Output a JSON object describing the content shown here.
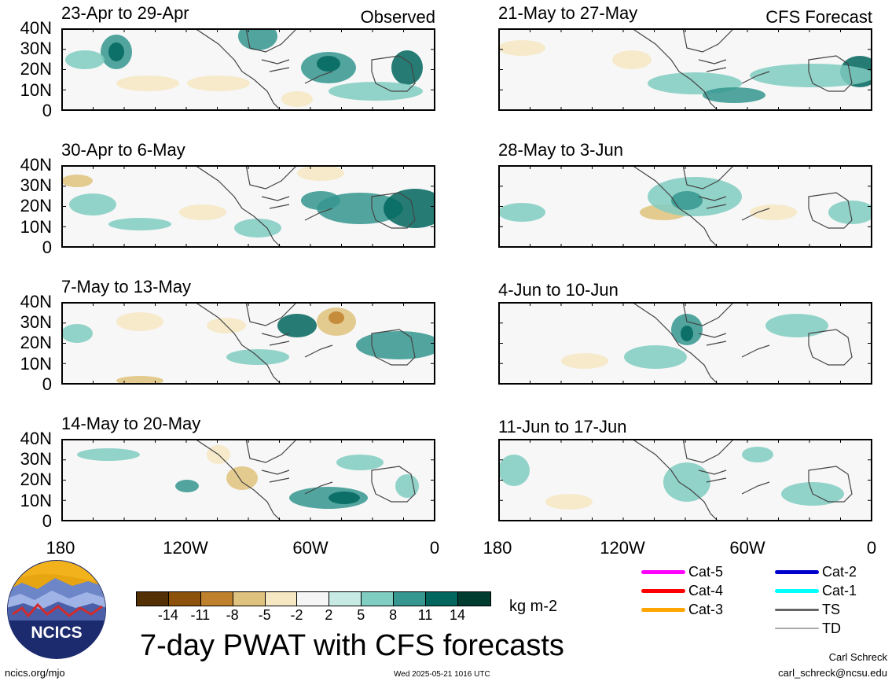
{
  "left_column_label": "Observed",
  "right_column_label": "CFS Forecast",
  "panels_left": [
    {
      "title": "23-Apr to 29-Apr"
    },
    {
      "title": "30-Apr to 6-May"
    },
    {
      "title": "7-May to 13-May"
    },
    {
      "title": "14-May to 20-May"
    }
  ],
  "panels_right": [
    {
      "title": "21-May to 27-May"
    },
    {
      "title": "28-May to 3-Jun"
    },
    {
      "title": "4-Jun to 10-Jun"
    },
    {
      "title": "11-Jun to 17-Jun"
    }
  ],
  "lat_ticks": [
    "40N",
    "30N",
    "20N",
    "10N",
    "0"
  ],
  "lon_ticks": [
    "180",
    "120W",
    "60W",
    "0"
  ],
  "colorbar": {
    "unit": "kg m-2",
    "labels": [
      "-14",
      "-11",
      "-8",
      "-5",
      "-2",
      "2",
      "5",
      "8",
      "11",
      "14"
    ],
    "colors": [
      "#543005",
      "#8c510a",
      "#bf812d",
      "#dfc27d",
      "#f6e8c3",
      "#f5f5f5",
      "#c7eae5",
      "#80cdc1",
      "#35978f",
      "#01665e",
      "#003c30"
    ]
  },
  "legend": {
    "items": [
      {
        "label": "Cat-5",
        "color": "#ff00ff"
      },
      {
        "label": "Cat-4",
        "color": "#ff0000"
      },
      {
        "label": "Cat-3",
        "color": "#ffa500"
      },
      {
        "label": "Cat-2",
        "color": "#0000cc"
      },
      {
        "label": "Cat-1",
        "color": "#00ffff"
      },
      {
        "label": "TS",
        "color": "#666666"
      },
      {
        "label": "TD",
        "color": "#aaaaaa"
      }
    ]
  },
  "logo": {
    "text": "NCICS"
  },
  "main_title": "7-day PWAT with CFS forecasts",
  "footer": {
    "url": "ncics.org/mjo",
    "timestamp": "Wed 2025-05-21 1016 UTC",
    "author": "Carl Schreck",
    "email": "carl_schreck@ncsu.edu"
  }
}
